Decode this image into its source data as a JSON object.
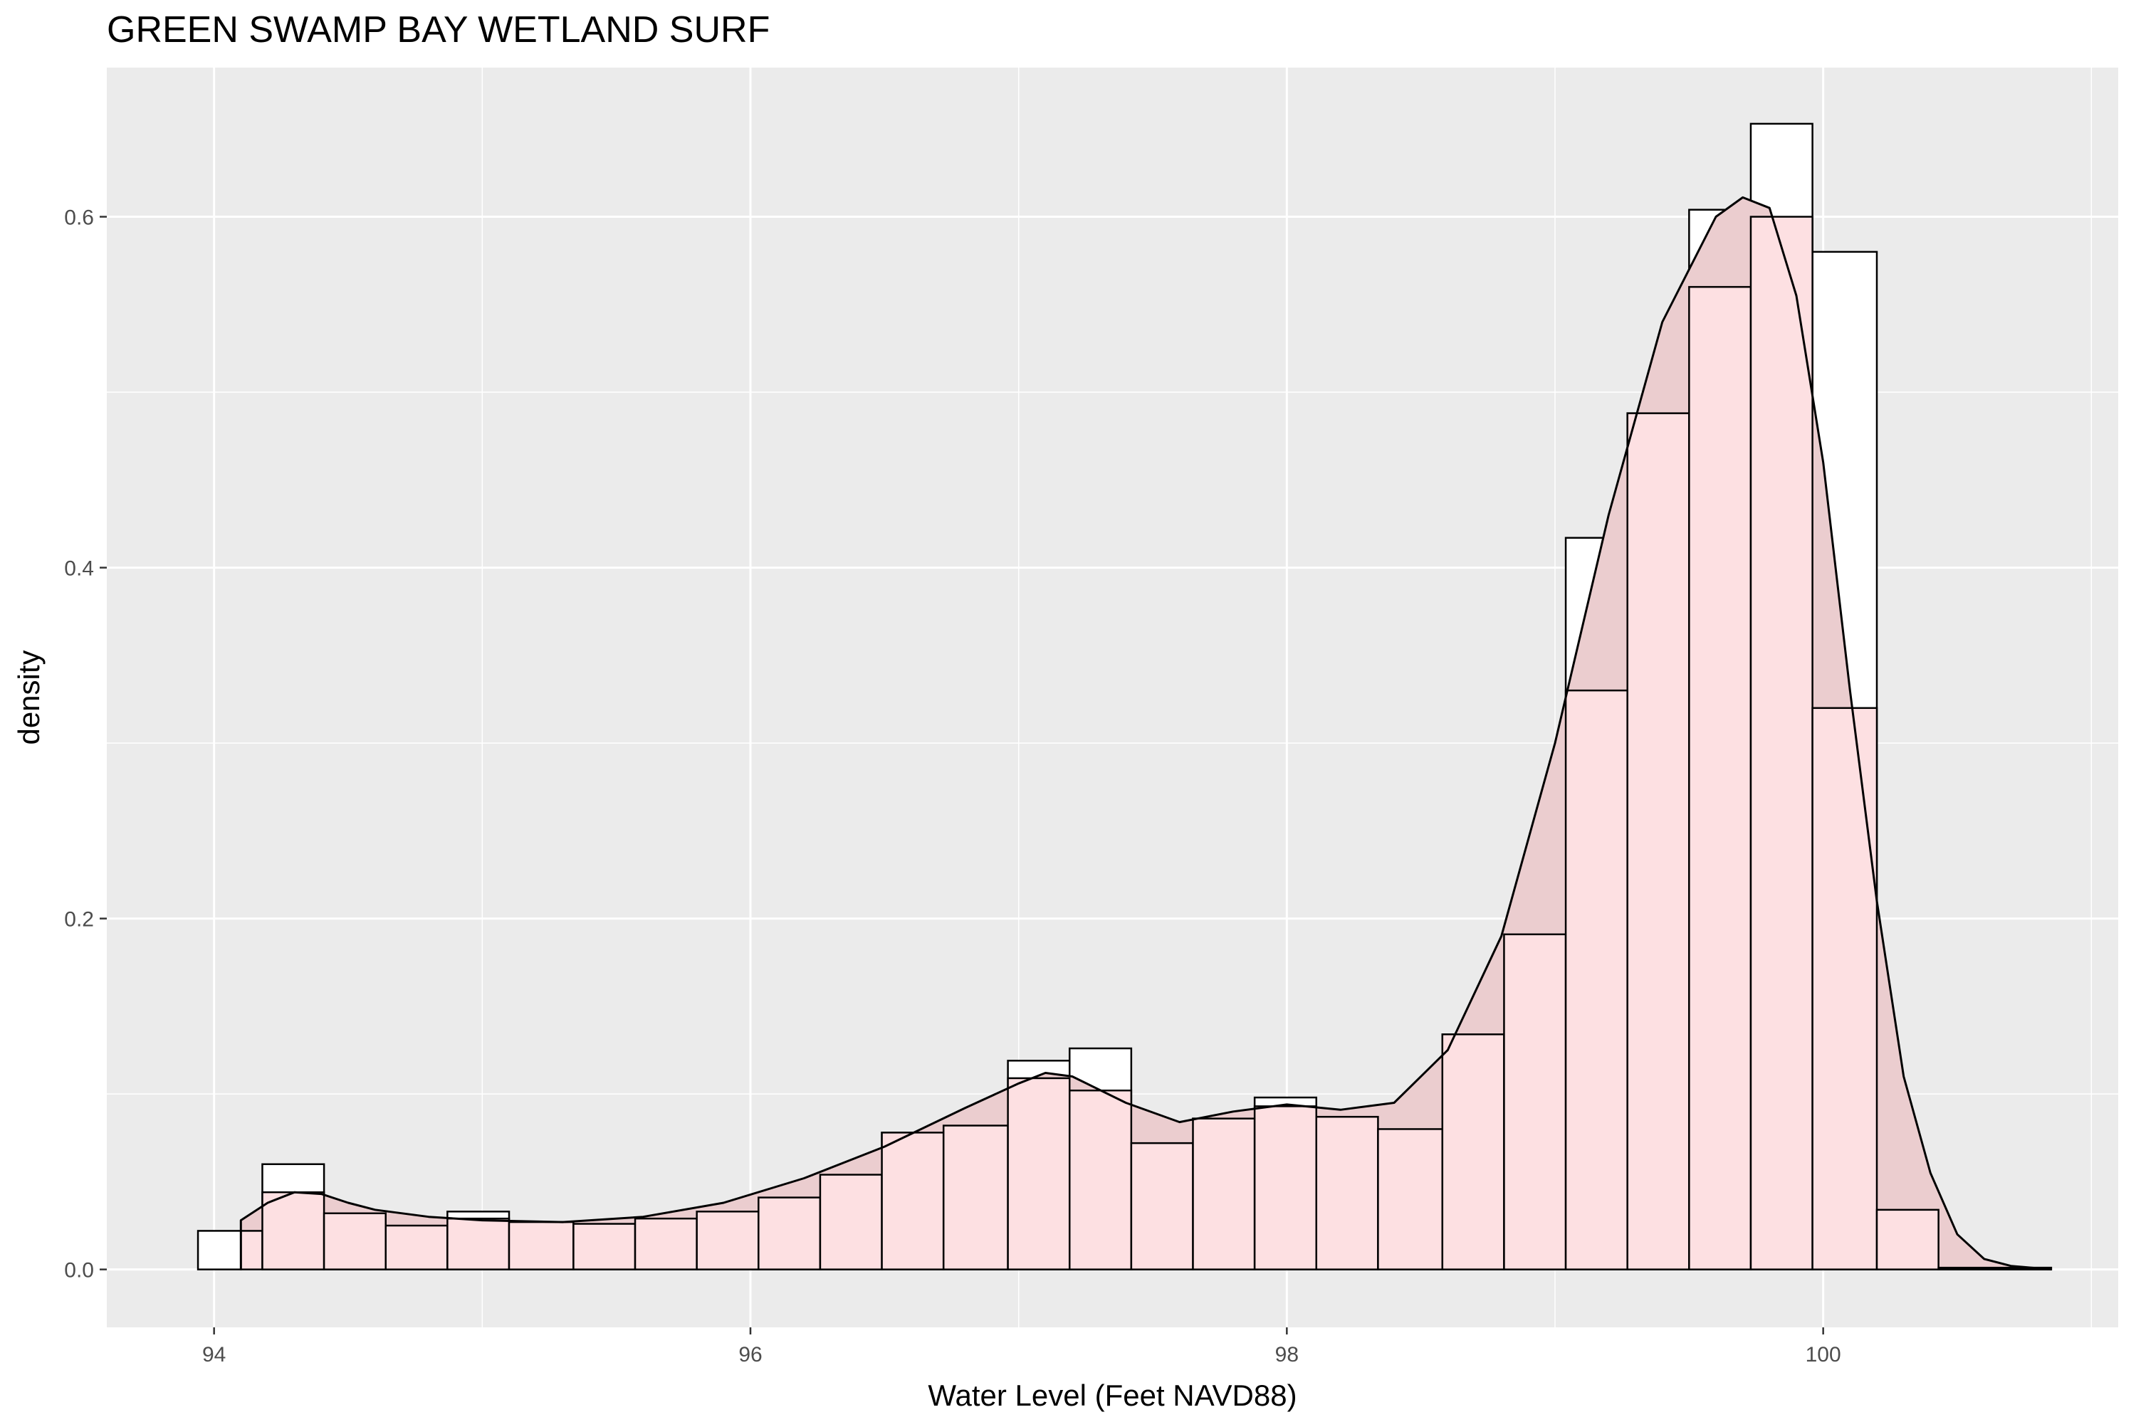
{
  "chart_data": {
    "type": "histogram",
    "title": "GREEN SWAMP BAY WETLAND SURF",
    "xlabel": "Water Level (Feet NAVD88)",
    "ylabel": "density",
    "xlim": [
      93.6,
      101.1
    ],
    "ylim": [
      -0.033,
      0.685
    ],
    "x_ticks": [
      94,
      96,
      98,
      100
    ],
    "y_ticks": [
      0.0,
      0.2,
      0.4,
      0.6
    ],
    "x_tick_labels": [
      "94",
      "96",
      "98",
      "100"
    ],
    "y_tick_labels": [
      "0.0",
      "0.2",
      "0.4",
      "0.6"
    ],
    "grid": true,
    "series": [
      {
        "kind": "histogram-outline",
        "bin_width": 0.232,
        "bars": [
          {
            "x0": 93.94,
            "x1": 94.1,
            "density": 0.022
          },
          {
            "x0": 94.18,
            "x1": 94.41,
            "density": 0.06
          },
          {
            "x0": 94.41,
            "x1": 94.64,
            "density": 0.032
          },
          {
            "x0": 94.64,
            "x1": 94.87,
            "density": 0.025
          },
          {
            "x0": 94.87,
            "x1": 95.1,
            "density": 0.033
          },
          {
            "x0": 95.1,
            "x1": 95.34,
            "density": 0.027
          },
          {
            "x0": 95.34,
            "x1": 95.57,
            "density": 0.026
          },
          {
            "x0": 95.57,
            "x1": 95.8,
            "density": 0.029
          },
          {
            "x0": 95.8,
            "x1": 96.03,
            "density": 0.035
          },
          {
            "x0": 96.03,
            "x1": 96.26,
            "density": 0.041
          },
          {
            "x0": 96.26,
            "x1": 96.49,
            "density": 0.054
          },
          {
            "x0": 96.49,
            "x1": 96.72,
            "density": 0.078
          },
          {
            "x0": 96.72,
            "x1": 96.96,
            "density": 0.082
          },
          {
            "x0": 96.96,
            "x1": 97.19,
            "density": 0.119
          },
          {
            "x0": 97.19,
            "x1": 97.42,
            "density": 0.126
          },
          {
            "x0": 97.42,
            "x1": 97.65,
            "density": 0.072
          },
          {
            "x0": 97.65,
            "x1": 97.88,
            "density": 0.086
          },
          {
            "x0": 97.88,
            "x1": 98.11,
            "density": 0.098
          },
          {
            "x0": 98.11,
            "x1": 98.34,
            "density": 0.087
          },
          {
            "x0": 98.34,
            "x1": 98.58,
            "density": 0.08
          },
          {
            "x0": 98.58,
            "x1": 98.81,
            "density": 0.134
          },
          {
            "x0": 98.81,
            "x1": 99.04,
            "density": 0.191
          },
          {
            "x0": 99.04,
            "x1": 99.27,
            "density": 0.417
          },
          {
            "x0": 99.27,
            "x1": 99.5,
            "density": 0.488
          },
          {
            "x0": 99.5,
            "x1": 99.73,
            "density": 0.604
          },
          {
            "x0": 99.73,
            "x1": 99.96,
            "density": 0.653
          },
          {
            "x0": 99.96,
            "x1": 100.2,
            "density": 0.58
          },
          {
            "x0": 100.2,
            "x1": 100.43,
            "density": 0.034
          },
          {
            "x0": 100.43,
            "x1": 100.85,
            "density": 0.001
          }
        ],
        "fill": "#ffffff",
        "stroke": "#000000"
      },
      {
        "kind": "histogram-filled",
        "bars": [
          {
            "x0": 94.1,
            "x1": 94.18,
            "density": 0.022
          },
          {
            "x0": 94.18,
            "x1": 94.41,
            "density": 0.044
          },
          {
            "x0": 94.41,
            "x1": 94.64,
            "density": 0.032
          },
          {
            "x0": 94.64,
            "x1": 94.87,
            "density": 0.025
          },
          {
            "x0": 94.87,
            "x1": 95.1,
            "density": 0.029
          },
          {
            "x0": 95.1,
            "x1": 95.34,
            "density": 0.027
          },
          {
            "x0": 95.34,
            "x1": 95.57,
            "density": 0.026
          },
          {
            "x0": 95.57,
            "x1": 95.8,
            "density": 0.029
          },
          {
            "x0": 95.8,
            "x1": 96.03,
            "density": 0.033
          },
          {
            "x0": 96.03,
            "x1": 96.26,
            "density": 0.041
          },
          {
            "x0": 96.26,
            "x1": 96.49,
            "density": 0.054
          },
          {
            "x0": 96.49,
            "x1": 96.72,
            "density": 0.078
          },
          {
            "x0": 96.72,
            "x1": 96.96,
            "density": 0.082
          },
          {
            "x0": 96.96,
            "x1": 97.19,
            "density": 0.109
          },
          {
            "x0": 97.19,
            "x1": 97.42,
            "density": 0.102
          },
          {
            "x0": 97.42,
            "x1": 97.65,
            "density": 0.072
          },
          {
            "x0": 97.65,
            "x1": 97.88,
            "density": 0.086
          },
          {
            "x0": 97.88,
            "x1": 98.11,
            "density": 0.093
          },
          {
            "x0": 98.11,
            "x1": 98.34,
            "density": 0.087
          },
          {
            "x0": 98.34,
            "x1": 98.58,
            "density": 0.08
          },
          {
            "x0": 98.58,
            "x1": 98.81,
            "density": 0.134
          },
          {
            "x0": 98.81,
            "x1": 99.04,
            "density": 0.191
          },
          {
            "x0": 99.04,
            "x1": 99.27,
            "density": 0.33
          },
          {
            "x0": 99.27,
            "x1": 99.5,
            "density": 0.488
          },
          {
            "x0": 99.5,
            "x1": 99.73,
            "density": 0.56
          },
          {
            "x0": 99.73,
            "x1": 99.96,
            "density": 0.6
          },
          {
            "x0": 99.96,
            "x1": 100.2,
            "density": 0.32
          },
          {
            "x0": 100.2,
            "x1": 100.43,
            "density": 0.034
          },
          {
            "x0": 100.43,
            "x1": 100.85,
            "density": 0.001
          }
        ],
        "fill": "#fde0e2",
        "stroke": "#000000"
      },
      {
        "kind": "density",
        "x": [
          94.1,
          94.2,
          94.3,
          94.4,
          94.5,
          94.6,
          94.8,
          95.0,
          95.3,
          95.6,
          95.9,
          96.2,
          96.5,
          96.8,
          97.0,
          97.1,
          97.2,
          97.4,
          97.6,
          97.8,
          98.0,
          98.2,
          98.4,
          98.6,
          98.8,
          99.0,
          99.2,
          99.4,
          99.6,
          99.7,
          99.8,
          99.9,
          100.0,
          100.1,
          100.2,
          100.3,
          100.4,
          100.5,
          100.6,
          100.7,
          100.85
        ],
        "y": [
          0.028,
          0.038,
          0.044,
          0.043,
          0.038,
          0.034,
          0.03,
          0.028,
          0.027,
          0.03,
          0.038,
          0.052,
          0.07,
          0.092,
          0.106,
          0.112,
          0.11,
          0.095,
          0.084,
          0.09,
          0.094,
          0.091,
          0.095,
          0.125,
          0.19,
          0.3,
          0.43,
          0.54,
          0.6,
          0.611,
          0.605,
          0.555,
          0.46,
          0.33,
          0.21,
          0.11,
          0.055,
          0.02,
          0.006,
          0.002,
          0.0
        ],
        "fill": "#ebcdcf",
        "stroke": "#000000"
      }
    ],
    "colors": {
      "panel_background": "#ebebeb",
      "gridline": "#ffffff",
      "tick_label": "#4d4d4d"
    }
  }
}
